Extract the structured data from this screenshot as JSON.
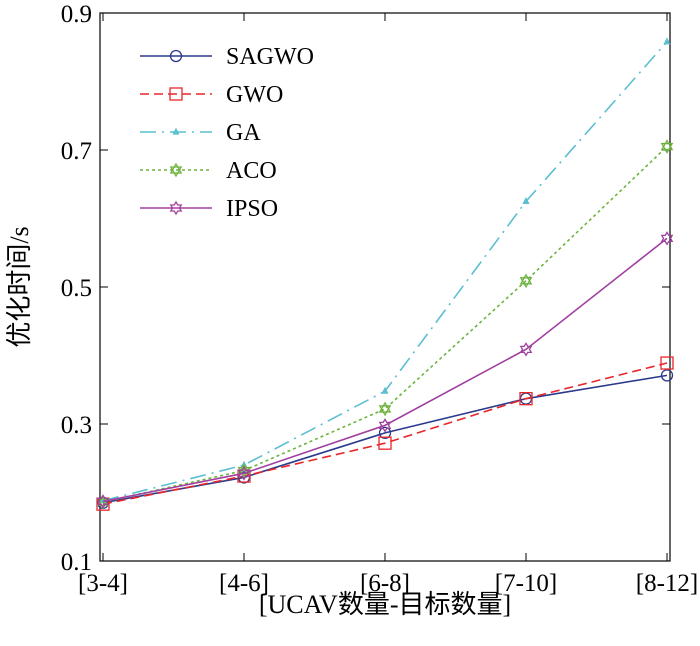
{
  "chart_data": {
    "type": "line",
    "title": "",
    "xlabel": "[UCAV数量-目标数量]",
    "ylabel": "优化时间/s",
    "categories": [
      "[3-4]",
      "[4-6]",
      "[6-8]",
      "[7-10]",
      "[8-12]"
    ],
    "ylim": [
      0.1,
      0.9
    ],
    "yticks": [
      0.1,
      0.3,
      0.5,
      0.7,
      0.9
    ],
    "ytick_labels": [
      "0.1",
      "0.3",
      "0.5",
      "0.7",
      "0.9"
    ],
    "grid": false,
    "legend_position": "top-left",
    "series": [
      {
        "name": "SAGWO",
        "values": [
          0.185,
          0.222,
          0.287,
          0.337,
          0.371
        ],
        "color": "#2b3a8c",
        "dash": "solid",
        "marker": "circle"
      },
      {
        "name": "GWO",
        "values": [
          0.183,
          0.224,
          0.272,
          0.337,
          0.389
        ],
        "color": "#e8262b",
        "dash": "dashed",
        "marker": "square"
      },
      {
        "name": "GA",
        "values": [
          0.188,
          0.24,
          0.348,
          0.625,
          0.858
        ],
        "color": "#5bbfd0",
        "dash": "dashdot",
        "marker": "triangle"
      },
      {
        "name": "ACO",
        "values": [
          0.186,
          0.232,
          0.322,
          0.509,
          0.705
        ],
        "color": "#6db33f",
        "dash": "dotted",
        "marker": "star"
      },
      {
        "name": "IPSO",
        "values": [
          0.187,
          0.228,
          0.298,
          0.409,
          0.571
        ],
        "color": "#a040a0",
        "dash": "solid",
        "marker": "hexagram"
      }
    ]
  }
}
